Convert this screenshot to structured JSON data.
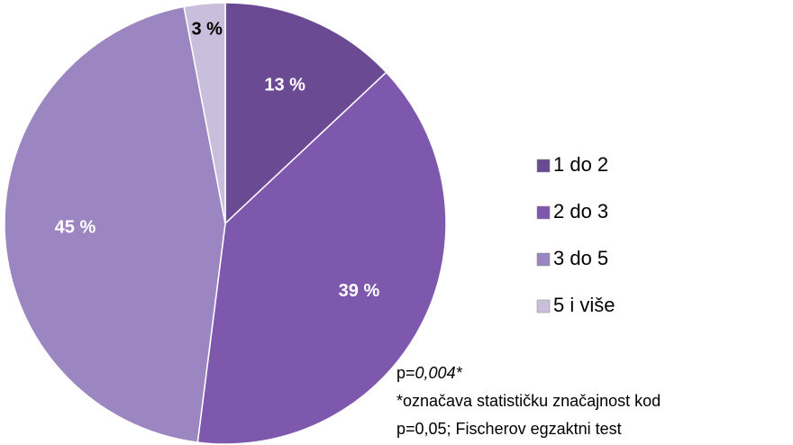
{
  "chart_data": {
    "type": "pie",
    "categories": [
      "1 do 2",
      "2 do 3",
      "3 do 5",
      "5 i više"
    ],
    "values": [
      13,
      39,
      45,
      3
    ],
    "value_labels": [
      "13 %",
      "39 %",
      "45 %",
      "3 %"
    ],
    "colors": [
      "#6b4a94",
      "#7d58ad",
      "#9c86c2",
      "#c9bedb"
    ],
    "legend": "right",
    "annotations": [
      "p=",
      "0,004*",
      "*označava statističku značajnost kod",
      "p=0,05; Fischerov egzaktni test"
    ]
  }
}
